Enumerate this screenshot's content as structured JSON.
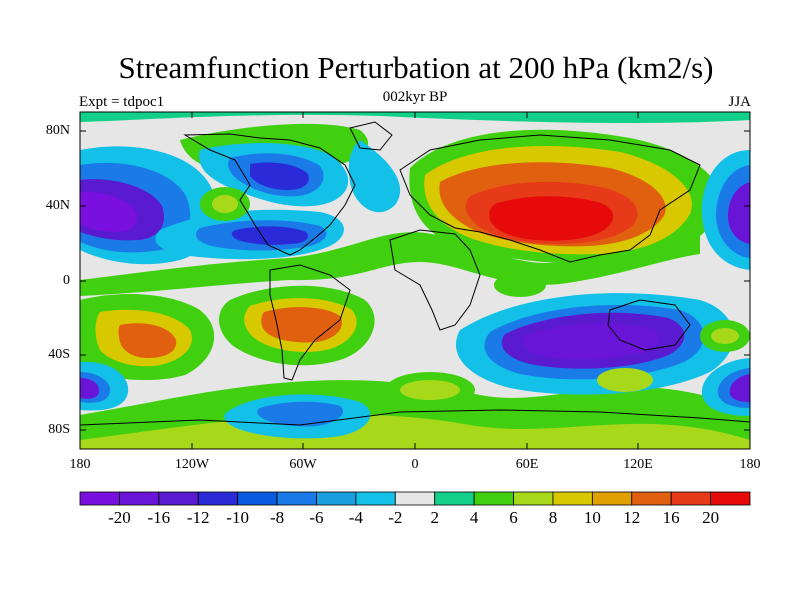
{
  "title": "Streamfunction Perturbation at 200 hPa (km2/s)",
  "subtitle": "002kyr BP",
  "left_string": "Expt = tdpoc1",
  "right_string": "JJA",
  "lat_ticks": [
    "80N",
    "40N",
    "0",
    "40S",
    "80S"
  ],
  "lon_ticks": [
    "180",
    "120W",
    "60W",
    "0",
    "60E",
    "120E",
    "180"
  ],
  "colorbar": {
    "labels": [
      "-20",
      "-16",
      "-12",
      "-10",
      "-8",
      "-6",
      "-4",
      "-2",
      "2",
      "4",
      "6",
      "8",
      "10",
      "12",
      "16",
      "20"
    ],
    "colors": [
      "#7a10e0",
      "#6a14d8",
      "#5a1ad0",
      "#2a2ad8",
      "#0a5ae0",
      "#1a7ae8",
      "#1aa0e0",
      "#12c0e8",
      "#e6e6e6",
      "#12d08a",
      "#40d010",
      "#a8d81a",
      "#d8c800",
      "#e0a000",
      "#e06010",
      "#e63a18",
      "#e60a0a"
    ]
  },
  "map_features": {
    "colors": {
      "strong_negative": "#6a14d8",
      "weak_negative": "#12c0e8",
      "neutral": "#e6e6e6",
      "weak_positive": "#40d010",
      "strong_positive": "#e60a0a"
    }
  }
}
